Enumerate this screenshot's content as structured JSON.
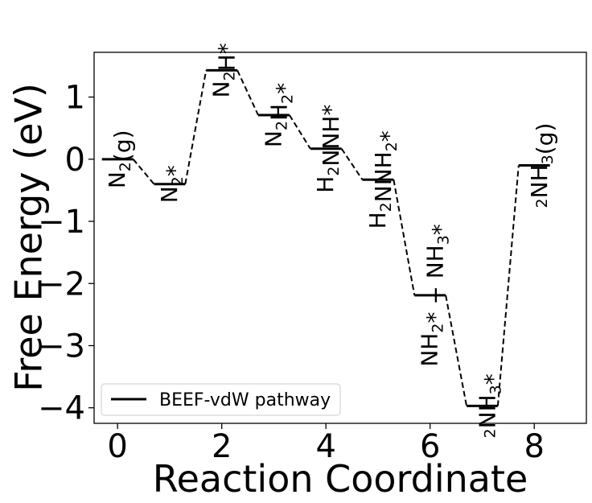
{
  "chart_data": {
    "type": "line",
    "xlabel": "Reaction Coordinate",
    "ylabel": "Free Energy (eV)",
    "xlim": [
      -0.45,
      9.0
    ],
    "ylim": [
      -4.25,
      1.72
    ],
    "xticks": [
      0,
      2,
      4,
      6,
      8
    ],
    "yticks": [
      1,
      0,
      -1,
      -2,
      -3,
      -4
    ],
    "xtick_labels": [
      "0",
      "2",
      "4",
      "6",
      "8"
    ],
    "ytick_labels": [
      "1",
      "0",
      "−1",
      "−2",
      "−3",
      "−4"
    ],
    "grid": false,
    "legend": {
      "entries": [
        "BEEF-vdW pathway"
      ],
      "placement": "lower-left"
    },
    "series": [
      {
        "name": "BEEF-vdW pathway",
        "color": "#000000",
        "steps": [
          {
            "x": 0,
            "y": 0.0
          },
          {
            "x": 1,
            "y": -0.4
          },
          {
            "x": 2,
            "y": 1.43
          },
          {
            "x": 3,
            "y": 0.71
          },
          {
            "x": 4,
            "y": 0.17
          },
          {
            "x": 5,
            "y": -0.33
          },
          {
            "x": 6,
            "y": -2.19
          },
          {
            "x": 7,
            "y": -3.97
          },
          {
            "x": 8,
            "y": -0.1
          }
        ]
      }
    ],
    "state_labels": [
      {
        "parts": [
          {
            "t": "N"
          },
          {
            "t": "2",
            "sub": true
          },
          {
            "t": "(g)"
          }
        ]
      },
      {
        "parts": [
          {
            "t": "N"
          },
          {
            "t": "2",
            "sub": true
          },
          {
            "t": "*"
          }
        ]
      },
      {
        "parts": [
          {
            "t": "N"
          },
          {
            "t": "2",
            "sub": true
          },
          {
            "t": "H*"
          }
        ]
      },
      {
        "parts": [
          {
            "t": "N"
          },
          {
            "t": "2",
            "sub": true
          },
          {
            "t": "H"
          },
          {
            "t": "2",
            "sub": true
          },
          {
            "t": "*"
          }
        ]
      },
      {
        "parts": [
          {
            "t": "H"
          },
          {
            "t": "2",
            "sub": true
          },
          {
            "t": "NNH*"
          }
        ]
      },
      {
        "parts": [
          {
            "t": "H"
          },
          {
            "t": "2",
            "sub": true
          },
          {
            "t": "NNH"
          },
          {
            "t": "2",
            "sub": true
          },
          {
            "t": "*"
          }
        ]
      },
      {
        "parts": [
          {
            "t": "NH"
          },
          {
            "t": "2",
            "sub": true
          },
          {
            "t": "* + NH"
          },
          {
            "t": "3",
            "sub": true
          },
          {
            "t": "*"
          }
        ]
      },
      {
        "parts": [
          {
            "t": "2",
            "sub": true
          },
          {
            "t": "NH"
          },
          {
            "t": "3",
            "sub": true
          },
          {
            "t": "*"
          }
        ]
      },
      {
        "parts": [
          {
            "t": "2",
            "sub": true
          },
          {
            "t": "NH"
          },
          {
            "t": "3",
            "sub": true
          },
          {
            "t": "(g)"
          }
        ]
      }
    ]
  }
}
